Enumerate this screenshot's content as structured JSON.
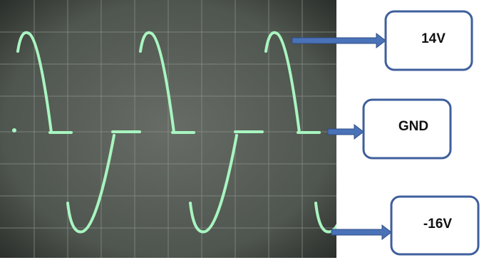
{
  "labels": [
    {
      "text": "14V"
    },
    {
      "text": "GND"
    },
    {
      "text": "-16V"
    }
  ]
}
